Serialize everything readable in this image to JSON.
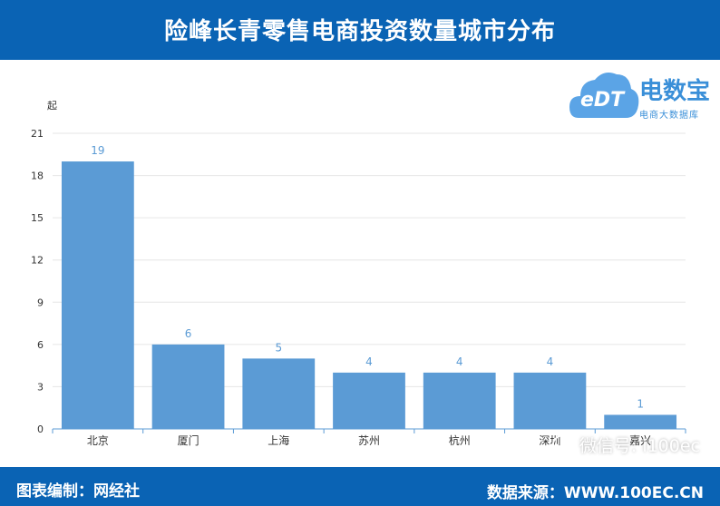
{
  "header": {
    "title": "险峰长青零售电商投资数量城市分布"
  },
  "logo": {
    "mark": "eDT",
    "brand": "电数宝",
    "sub": "电商大数据库",
    "colors": {
      "cloud": "#5ba4e6",
      "text": "#3a8fd8"
    }
  },
  "footer": {
    "left_text": "图表编制：网经社",
    "right_text": "数据来源：WWW.100EC.CN"
  },
  "watermark": {
    "text": "微信号: i100ec"
  },
  "colors": {
    "header_bg": "#0a63b4",
    "bar": "#5b9bd5",
    "label": "#5b9bd5",
    "axis": "#5b9bd5"
  },
  "chart_data": {
    "type": "bar",
    "ylabel": "起",
    "xlabel": "",
    "ylim": [
      0,
      21
    ],
    "yticks": [
      0,
      3,
      6,
      9,
      12,
      15,
      18,
      21
    ],
    "grid": true,
    "categories": [
      "北京",
      "厦门",
      "上海",
      "苏州",
      "杭州",
      "深圳",
      "嘉兴"
    ],
    "values": [
      19,
      6,
      5,
      4,
      4,
      4,
      1
    ]
  }
}
